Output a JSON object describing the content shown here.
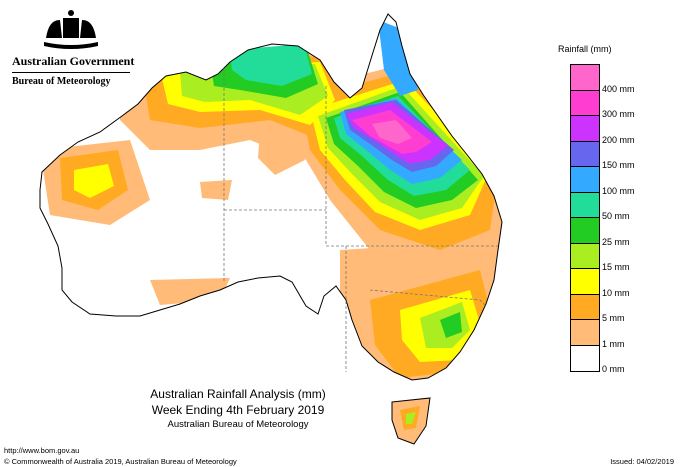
{
  "header": {
    "government": "Australian Government",
    "bureau": "Bureau of Meteorology"
  },
  "legend": {
    "title": "Rainfall (mm)",
    "bins": [
      {
        "label": "",
        "color": "#ff66cc"
      },
      {
        "label": "400 mm",
        "color": "#ff3dd1"
      },
      {
        "label": "300 mm",
        "color": "#cc33ff"
      },
      {
        "label": "200 mm",
        "color": "#6666ee"
      },
      {
        "label": "150 mm",
        "color": "#33aaff"
      },
      {
        "label": "100 mm",
        "color": "#22dd99"
      },
      {
        "label": "50 mm",
        "color": "#22cc22"
      },
      {
        "label": "25 mm",
        "color": "#aaee22"
      },
      {
        "label": "15 mm",
        "color": "#ffff00"
      },
      {
        "label": "10 mm",
        "color": "#ffaa22"
      },
      {
        "label": "5 mm",
        "color": "#ffbb77"
      },
      {
        "label": "1 mm",
        "color": "#ffffff"
      },
      {
        "label": "0 mm",
        "color": ""
      }
    ]
  },
  "map": {
    "title_line1": "Australian Rainfall Analysis (mm)",
    "title_line2": "Week Ending 4th February 2019",
    "title_line3": "Australian Bureau of Meteorology"
  },
  "footer": {
    "url": "http://www.bom.gov.au",
    "copyright": "© Commonwealth of Australia 2019, Australian Bureau of Meteorology",
    "issued": "Issued: 04/02/2019"
  }
}
